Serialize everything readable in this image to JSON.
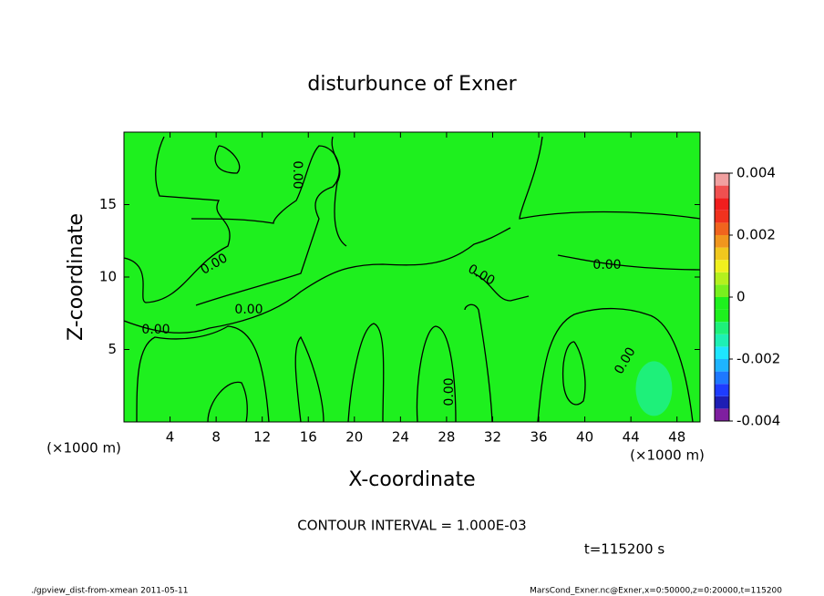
{
  "chart_data": {
    "type": "contour",
    "title": "disturbunce of Exner",
    "x_label": "X-coordinate",
    "y_label": "Z-coordinate",
    "x_unit": "(×1000 m)",
    "y_unit": "(×1000 m)",
    "xlim": [
      0,
      50
    ],
    "xticks": [
      4,
      8,
      12,
      16,
      20,
      24,
      28,
      32,
      36,
      40,
      44,
      48
    ],
    "ylim": [
      0,
      20
    ],
    "yticks": [
      5,
      10,
      15
    ],
    "field_color": "#1ef01e",
    "patch_color": "#1ef07a",
    "contour_labels": [
      "0.00",
      "0.00",
      "0.00",
      "0.00",
      "0.00",
      "0.00",
      "0.00",
      "0.00"
    ],
    "colorbar": {
      "lim": [
        -0.004,
        0.004
      ],
      "ticks": [
        0.004,
        0.002,
        0,
        -0.002,
        -0.004
      ],
      "colors": [
        "#7f1fa0",
        "#1e1eb4",
        "#1e3cff",
        "#1e78ff",
        "#1eb4ff",
        "#1ee6ff",
        "#1ef0b4",
        "#1ef07a",
        "#1ef01e",
        "#1ef01e",
        "#78f01e",
        "#b4f01e",
        "#f0f01e",
        "#f0c81e",
        "#f0961e",
        "#f0641e",
        "#f0321e",
        "#f01e1e",
        "#f05050",
        "#f0a0a0"
      ]
    },
    "contour_interval": "CONTOUR INTERVAL = 1.000E-03",
    "time_label": "t=115200 s",
    "footer_left": "./gpview_dist-from-xmean  2011-05-11",
    "footer_right": "MarsCond_Exner.nc@Exner,x=0:50000,z=0:20000,t=115200"
  }
}
